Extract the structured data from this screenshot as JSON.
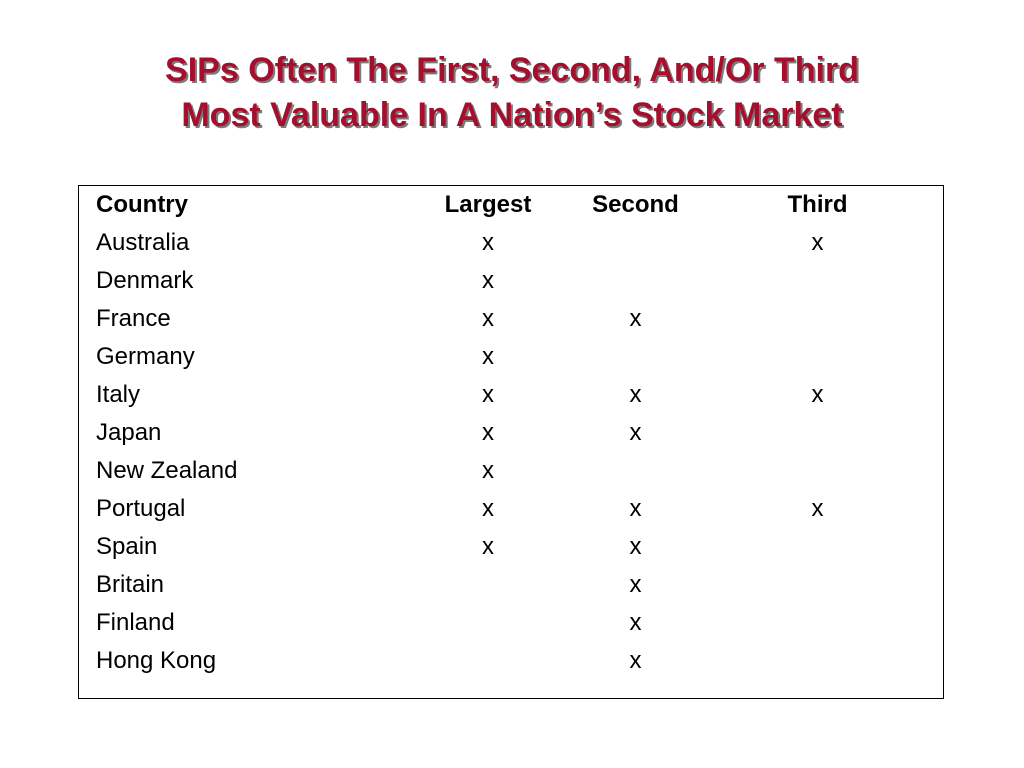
{
  "title": {
    "line1": "SIPs Often The First, Second, And/Or Third",
    "line2": "Most Valuable In A Nation’s Stock Market"
  },
  "table": {
    "headers": [
      "Country",
      "Largest",
      "Second",
      "Third"
    ],
    "rows": [
      [
        "Australia",
        "x",
        "",
        "x"
      ],
      [
        "Denmark",
        "x",
        "",
        ""
      ],
      [
        "France",
        "x",
        "x",
        ""
      ],
      [
        "Germany",
        "x",
        "",
        ""
      ],
      [
        "Italy",
        "x",
        "x",
        "x"
      ],
      [
        "Japan",
        "x",
        "x",
        ""
      ],
      [
        "New Zealand",
        "x",
        "",
        ""
      ],
      [
        "Portugal",
        "x",
        "x",
        "x"
      ],
      [
        "Spain",
        "x",
        "x",
        ""
      ],
      [
        "Britain",
        "",
        "x",
        ""
      ],
      [
        "Finland",
        "",
        "x",
        ""
      ],
      [
        "Hong Kong",
        "",
        "x",
        ""
      ]
    ]
  },
  "colors": {
    "title": "#a50f2d",
    "title_shadow": "#7a7a7a",
    "text": "#000000",
    "border": "#000000"
  }
}
